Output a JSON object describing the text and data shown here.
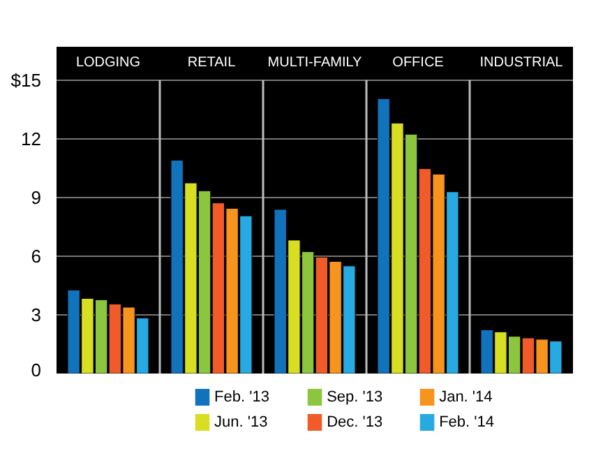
{
  "chart_data": {
    "type": "bar",
    "categories": [
      "LODGING",
      "RETAIL",
      "MULTI-FAMILY",
      "OFFICE",
      "INDUSTRIAL"
    ],
    "series": [
      {
        "name": "Feb. '13",
        "color": "#1273bd",
        "values": [
          4.27,
          10.9,
          8.39,
          14.05,
          2.23
        ]
      },
      {
        "name": "Jun. '13",
        "color": "#d8de22",
        "values": [
          3.84,
          9.74,
          6.82,
          12.8,
          2.13
        ]
      },
      {
        "name": "Sep. '13",
        "color": "#8cc63f",
        "values": [
          3.77,
          9.34,
          6.23,
          12.23,
          1.9
        ]
      },
      {
        "name": "Dec. '13",
        "color": "#f15a29",
        "values": [
          3.55,
          8.72,
          5.95,
          10.47,
          1.82
        ]
      },
      {
        "name": "Jan. '14",
        "color": "#f7941d",
        "values": [
          3.39,
          8.44,
          5.73,
          10.19,
          1.75
        ]
      },
      {
        "name": "Feb. '14",
        "color": "#27aae1",
        "values": [
          2.84,
          8.06,
          5.5,
          9.29,
          1.66
        ]
      }
    ],
    "ylim": [
      0,
      16.7
    ],
    "yticks": [
      0,
      3,
      6,
      9,
      12,
      {
        "value": 15,
        "label": "$15"
      }
    ],
    "grid": "y",
    "legend": "bottom"
  }
}
